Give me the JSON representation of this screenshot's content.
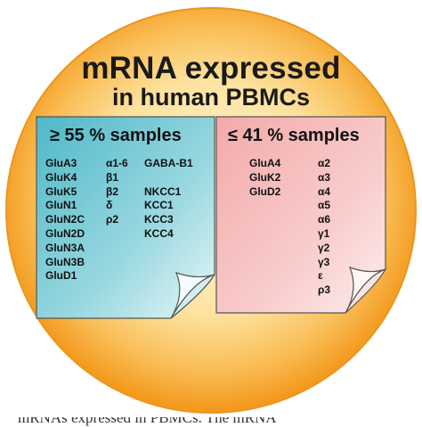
{
  "title": {
    "line1": "mRNA expressed",
    "line2": "in human PBMCs"
  },
  "notes": [
    {
      "heading": "≥ 55 % samples",
      "color": "#5bbfcf",
      "columns": [
        [
          "GluA3",
          "GluK4",
          "GluK5",
          "GluN1",
          "GluN2C",
          "GluN2D",
          "GluN3A",
          "GluN3B",
          "GluD1"
        ],
        [
          "α1-6",
          "β1",
          "β2",
          "δ",
          "ρ2"
        ],
        [
          "GABA-B1",
          "",
          "NKCC1",
          "KCC1",
          "KCC3",
          "KCC4"
        ]
      ]
    },
    {
      "heading": "≤  41 % samples",
      "color": "#f4b4b4",
      "columns": [
        [
          "GluA4",
          "GluK2",
          "GluD2"
        ],
        [
          "α2",
          "α3",
          "α4",
          "α5",
          "α6",
          "γ1",
          "γ2",
          "γ3",
          "ε",
          "ρ3"
        ]
      ]
    }
  ],
  "colors": {
    "circle_outer": "#f39a1e",
    "circle_inner": "#fde7a8"
  },
  "caption_fragment": "mRNAs expressed in PBMCs. The mRNA"
}
